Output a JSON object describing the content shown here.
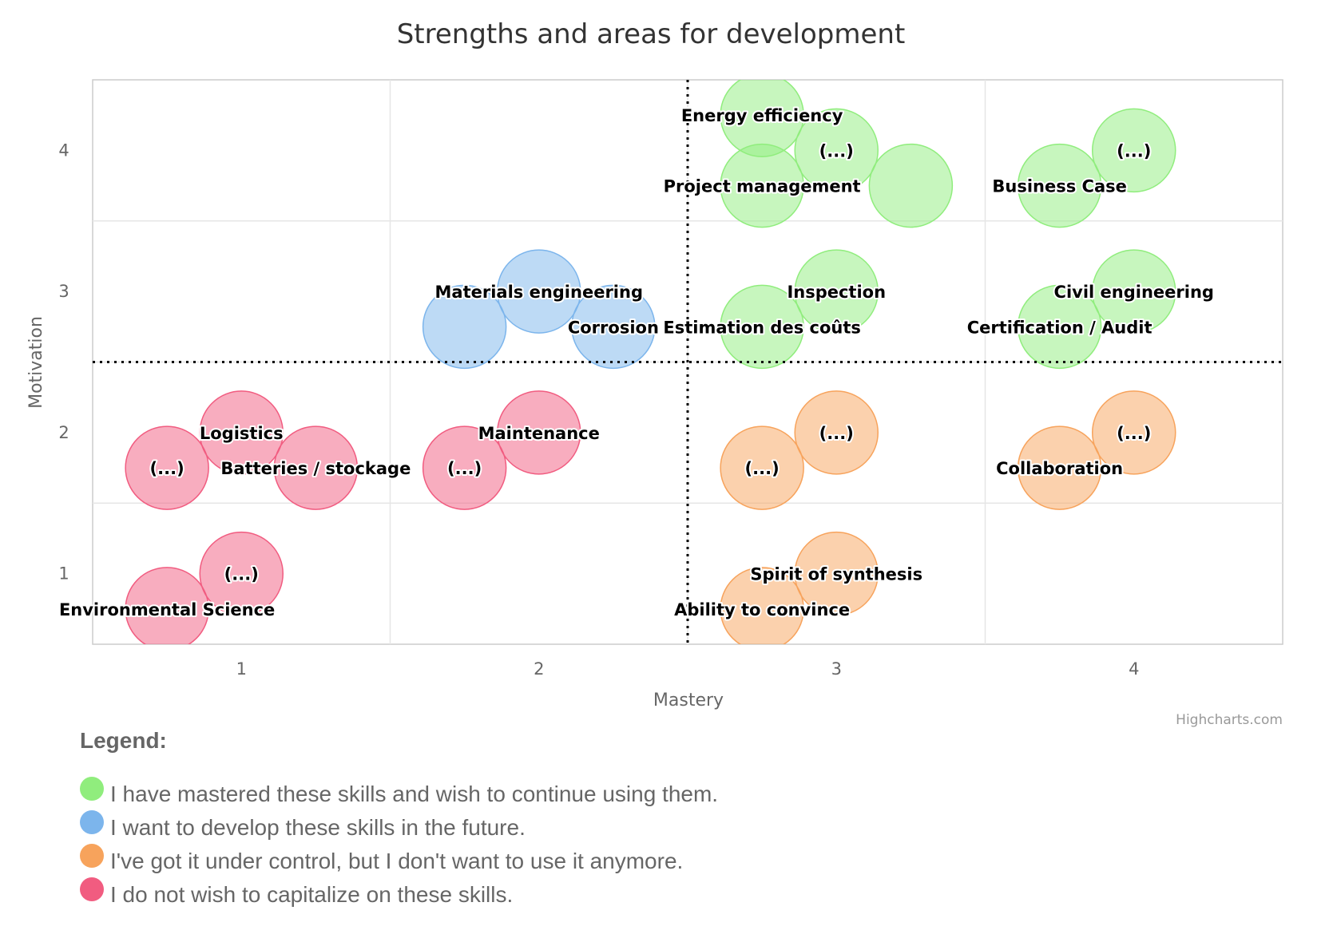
{
  "chart_data": {
    "type": "bubble",
    "title": "Strengths and areas for development",
    "xlabel": "Mastery",
    "ylabel": "Motivation",
    "xlim": [
      0.5,
      4.5
    ],
    "ylim": [
      0.5,
      4.5
    ],
    "xticks": [
      "1",
      "2",
      "3",
      "4"
    ],
    "yticks": [
      "1",
      "2",
      "3",
      "4"
    ],
    "x_threshold": 2.5,
    "y_threshold": 2.5,
    "credits": "Highcharts.com",
    "series": [
      {
        "name": "I have mastered these skills and wish to continue using them.",
        "color": "#90ed7d",
        "points": [
          {
            "x": 2.75,
            "y": 4.25,
            "label": "Energy efficiency"
          },
          {
            "x": 3.0,
            "y": 4.0,
            "label": "(...)"
          },
          {
            "x": 2.75,
            "y": 3.75,
            "label": "Project management"
          },
          {
            "x": 3.25,
            "y": 3.75,
            "label": ""
          },
          {
            "x": 4.0,
            "y": 4.0,
            "label": "(...)"
          },
          {
            "x": 3.75,
            "y": 3.75,
            "label": "Business Case"
          },
          {
            "x": 3.0,
            "y": 3.0,
            "label": "Inspection"
          },
          {
            "x": 2.75,
            "y": 2.75,
            "label": "Estimation des coûts"
          },
          {
            "x": 4.0,
            "y": 3.0,
            "label": "Civil engineering"
          },
          {
            "x": 3.75,
            "y": 2.75,
            "label": "Certification / Audit"
          }
        ]
      },
      {
        "name": "I want to develop these skills in the future.",
        "color": "#7cb5ec",
        "points": [
          {
            "x": 2.0,
            "y": 3.0,
            "label": "Materials engineering"
          },
          {
            "x": 1.75,
            "y": 2.75,
            "label": ""
          },
          {
            "x": 2.25,
            "y": 2.75,
            "label": "Corrosion"
          }
        ]
      },
      {
        "name": "I've got it under control, but I don't want to use it anymore.",
        "color": "#f7a35c",
        "points": [
          {
            "x": 3.0,
            "y": 2.0,
            "label": "(...)"
          },
          {
            "x": 2.75,
            "y": 1.75,
            "label": "(...)"
          },
          {
            "x": 4.0,
            "y": 2.0,
            "label": "(...)"
          },
          {
            "x": 3.75,
            "y": 1.75,
            "label": "Collaboration"
          },
          {
            "x": 3.0,
            "y": 1.0,
            "label": "Spirit of synthesis"
          },
          {
            "x": 2.75,
            "y": 0.75,
            "label": "Ability to convince"
          }
        ]
      },
      {
        "name": "I do not wish to capitalize on these skills.",
        "color": "#f15c80",
        "points": [
          {
            "x": 1.0,
            "y": 2.0,
            "label": "Logistics"
          },
          {
            "x": 0.75,
            "y": 1.75,
            "label": "(...)"
          },
          {
            "x": 1.25,
            "y": 1.75,
            "label": "Batteries / stockage"
          },
          {
            "x": 2.0,
            "y": 2.0,
            "label": "Maintenance"
          },
          {
            "x": 1.75,
            "y": 1.75,
            "label": "(...)"
          },
          {
            "x": 1.0,
            "y": 1.0,
            "label": "(...)"
          },
          {
            "x": 0.75,
            "y": 0.75,
            "label": "Environmental Science"
          }
        ]
      }
    ]
  },
  "legend": {
    "title": "Legend:",
    "items": [
      {
        "label": "I have mastered these skills and wish to continue using them.",
        "color": "#90ed7d"
      },
      {
        "label": "I want to develop these skills in the future.",
        "color": "#7cb5ec"
      },
      {
        "label": "I've got it under control, but I don't want to use it anymore.",
        "color": "#f7a35c"
      },
      {
        "label": "I do not wish to capitalize on these skills.",
        "color": "#f15c80"
      }
    ]
  }
}
